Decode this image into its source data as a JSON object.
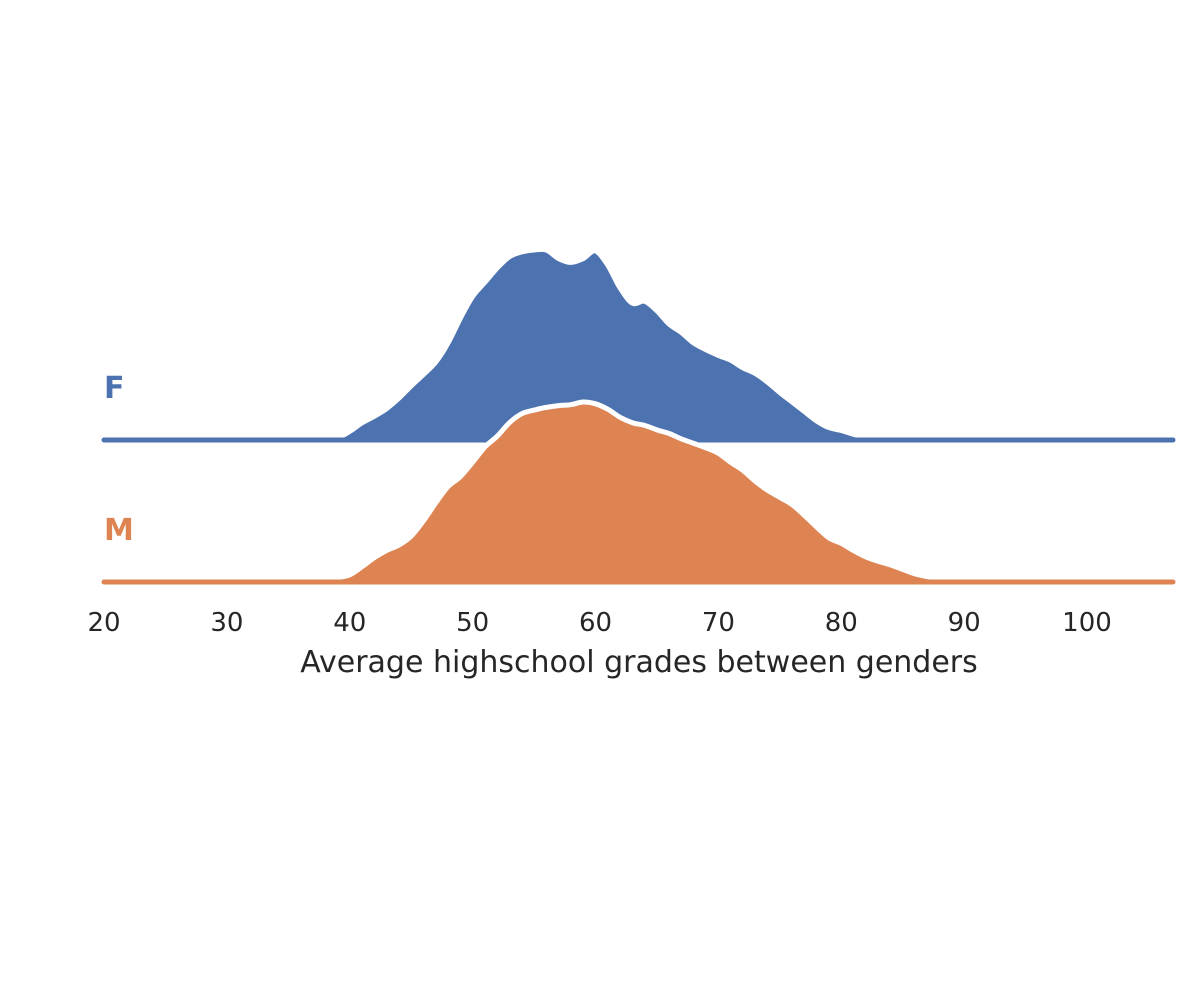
{
  "chart_data": {
    "type": "area",
    "title": "",
    "xlabel": "Average highschool grades between genders",
    "ylabel": "",
    "xlim": [
      20,
      107
    ],
    "xticks": [
      20,
      30,
      40,
      50,
      60,
      70,
      80,
      90,
      100
    ],
    "grid": false,
    "legend": "none",
    "series": [
      {
        "name": "F",
        "color": "#4c72b0",
        "x": [
          20,
          36,
          38,
          39,
          40,
          41,
          42,
          43,
          44,
          45,
          46,
          47,
          48,
          49,
          50,
          51,
          52,
          53,
          54,
          55,
          56,
          57,
          58,
          59,
          60,
          61,
          62,
          63,
          64,
          65,
          66,
          67,
          68,
          69,
          70,
          71,
          72,
          73,
          74,
          75,
          76,
          77,
          78,
          79,
          80,
          81,
          82,
          83,
          84,
          85,
          86,
          107
        ],
        "density": [
          0,
          0,
          0.005,
          0.012,
          0.045,
          0.09,
          0.125,
          0.165,
          0.22,
          0.285,
          0.345,
          0.41,
          0.51,
          0.64,
          0.755,
          0.83,
          0.905,
          0.965,
          0.99,
          1.0,
          1.0,
          0.955,
          0.935,
          0.955,
          0.995,
          0.92,
          0.8,
          0.72,
          0.73,
          0.68,
          0.61,
          0.565,
          0.51,
          0.475,
          0.445,
          0.42,
          0.38,
          0.35,
          0.305,
          0.25,
          0.2,
          0.15,
          0.1,
          0.065,
          0.05,
          0.03,
          0.015,
          0.005,
          0,
          0,
          0,
          0
        ]
      },
      {
        "name": "M",
        "color": "#dd8452",
        "x": [
          20,
          37,
          38,
          39,
          40,
          41,
          42,
          43,
          44,
          45,
          46,
          47,
          48,
          49,
          50,
          51,
          52,
          53,
          54,
          55,
          56,
          57,
          58,
          59,
          60,
          61,
          62,
          63,
          64,
          65,
          66,
          67,
          68,
          69,
          70,
          71,
          72,
          73,
          74,
          75,
          76,
          77,
          78,
          79,
          80,
          81,
          82,
          83,
          84,
          85,
          86,
          87,
          88,
          89,
          107
        ],
        "density": [
          0,
          0,
          0.015,
          0.025,
          0.04,
          0.085,
          0.135,
          0.175,
          0.205,
          0.255,
          0.34,
          0.44,
          0.53,
          0.585,
          0.665,
          0.75,
          0.81,
          0.885,
          0.935,
          0.955,
          0.97,
          0.98,
          0.985,
          1.0,
          0.99,
          0.96,
          0.915,
          0.885,
          0.87,
          0.845,
          0.825,
          0.795,
          0.77,
          0.745,
          0.715,
          0.665,
          0.62,
          0.56,
          0.51,
          0.47,
          0.43,
          0.37,
          0.305,
          0.245,
          0.215,
          0.175,
          0.14,
          0.115,
          0.095,
          0.07,
          0.045,
          0.03,
          0.02,
          0.005,
          0
        ]
      }
    ]
  }
}
